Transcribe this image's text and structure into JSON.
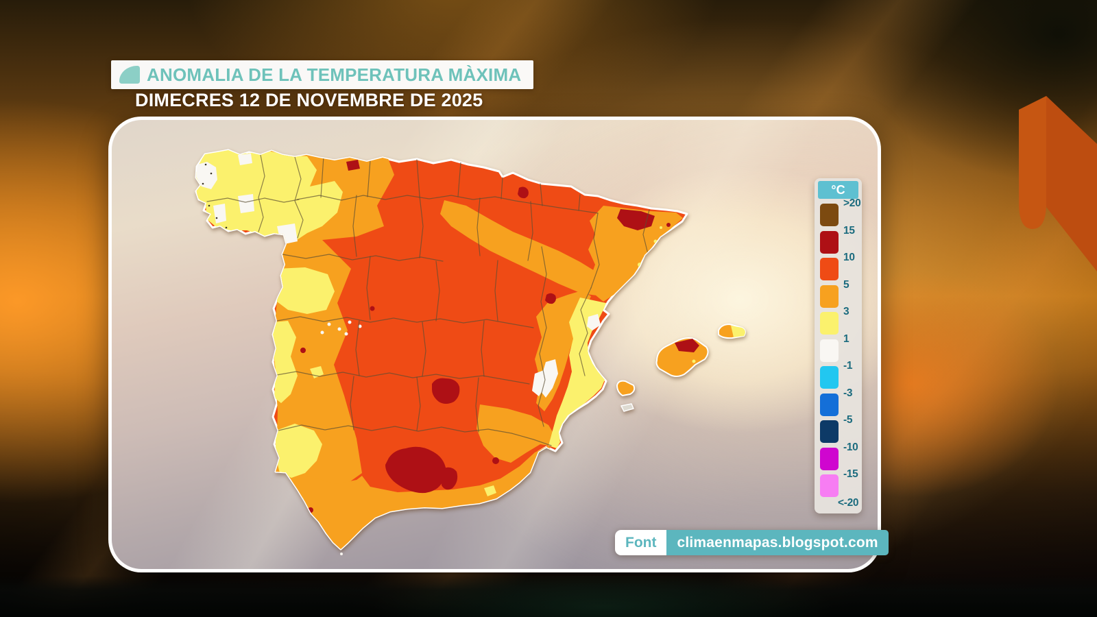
{
  "header": {
    "title": "ANOMALIA DE LA TEMPERATURA MÀXIMA",
    "date": "DIMECRES 12 DE NOVEMBRE DE 2025"
  },
  "legend": {
    "unit": "°C",
    "entries": [
      {
        "label": ">20",
        "color": "#7c4a10"
      },
      {
        "label": "15",
        "color": "#ae1015"
      },
      {
        "label": "10",
        "color": "#ef4b15"
      },
      {
        "label": "5",
        "color": "#f7a11f"
      },
      {
        "label": "3",
        "color": "#fbf16d"
      },
      {
        "label": "1",
        "color": "#f9f7f3"
      },
      {
        "label": "-1",
        "color": "#22c7f0"
      },
      {
        "label": "-3",
        "color": "#146fd8"
      },
      {
        "label": "-5",
        "color": "#0d3a67"
      },
      {
        "label": "-10",
        "color": "#cf06cf"
      },
      {
        "label": "-15",
        "color": "#f77df3"
      }
    ],
    "bottom_label": "<-20"
  },
  "source": {
    "label": "Font",
    "value": "climaenmapas.blogspot.com"
  },
  "theme": {
    "title_teal": "#6ec2ba",
    "title_icon_teal": "#8ccfc6",
    "credit_teal": "#5cb6be",
    "legend_header_teal": "#5ec0d1",
    "legend_label_color": "#1b6b7e",
    "map_border_color": "#5b4f33",
    "island_minor_fill": "#dedbd2"
  }
}
